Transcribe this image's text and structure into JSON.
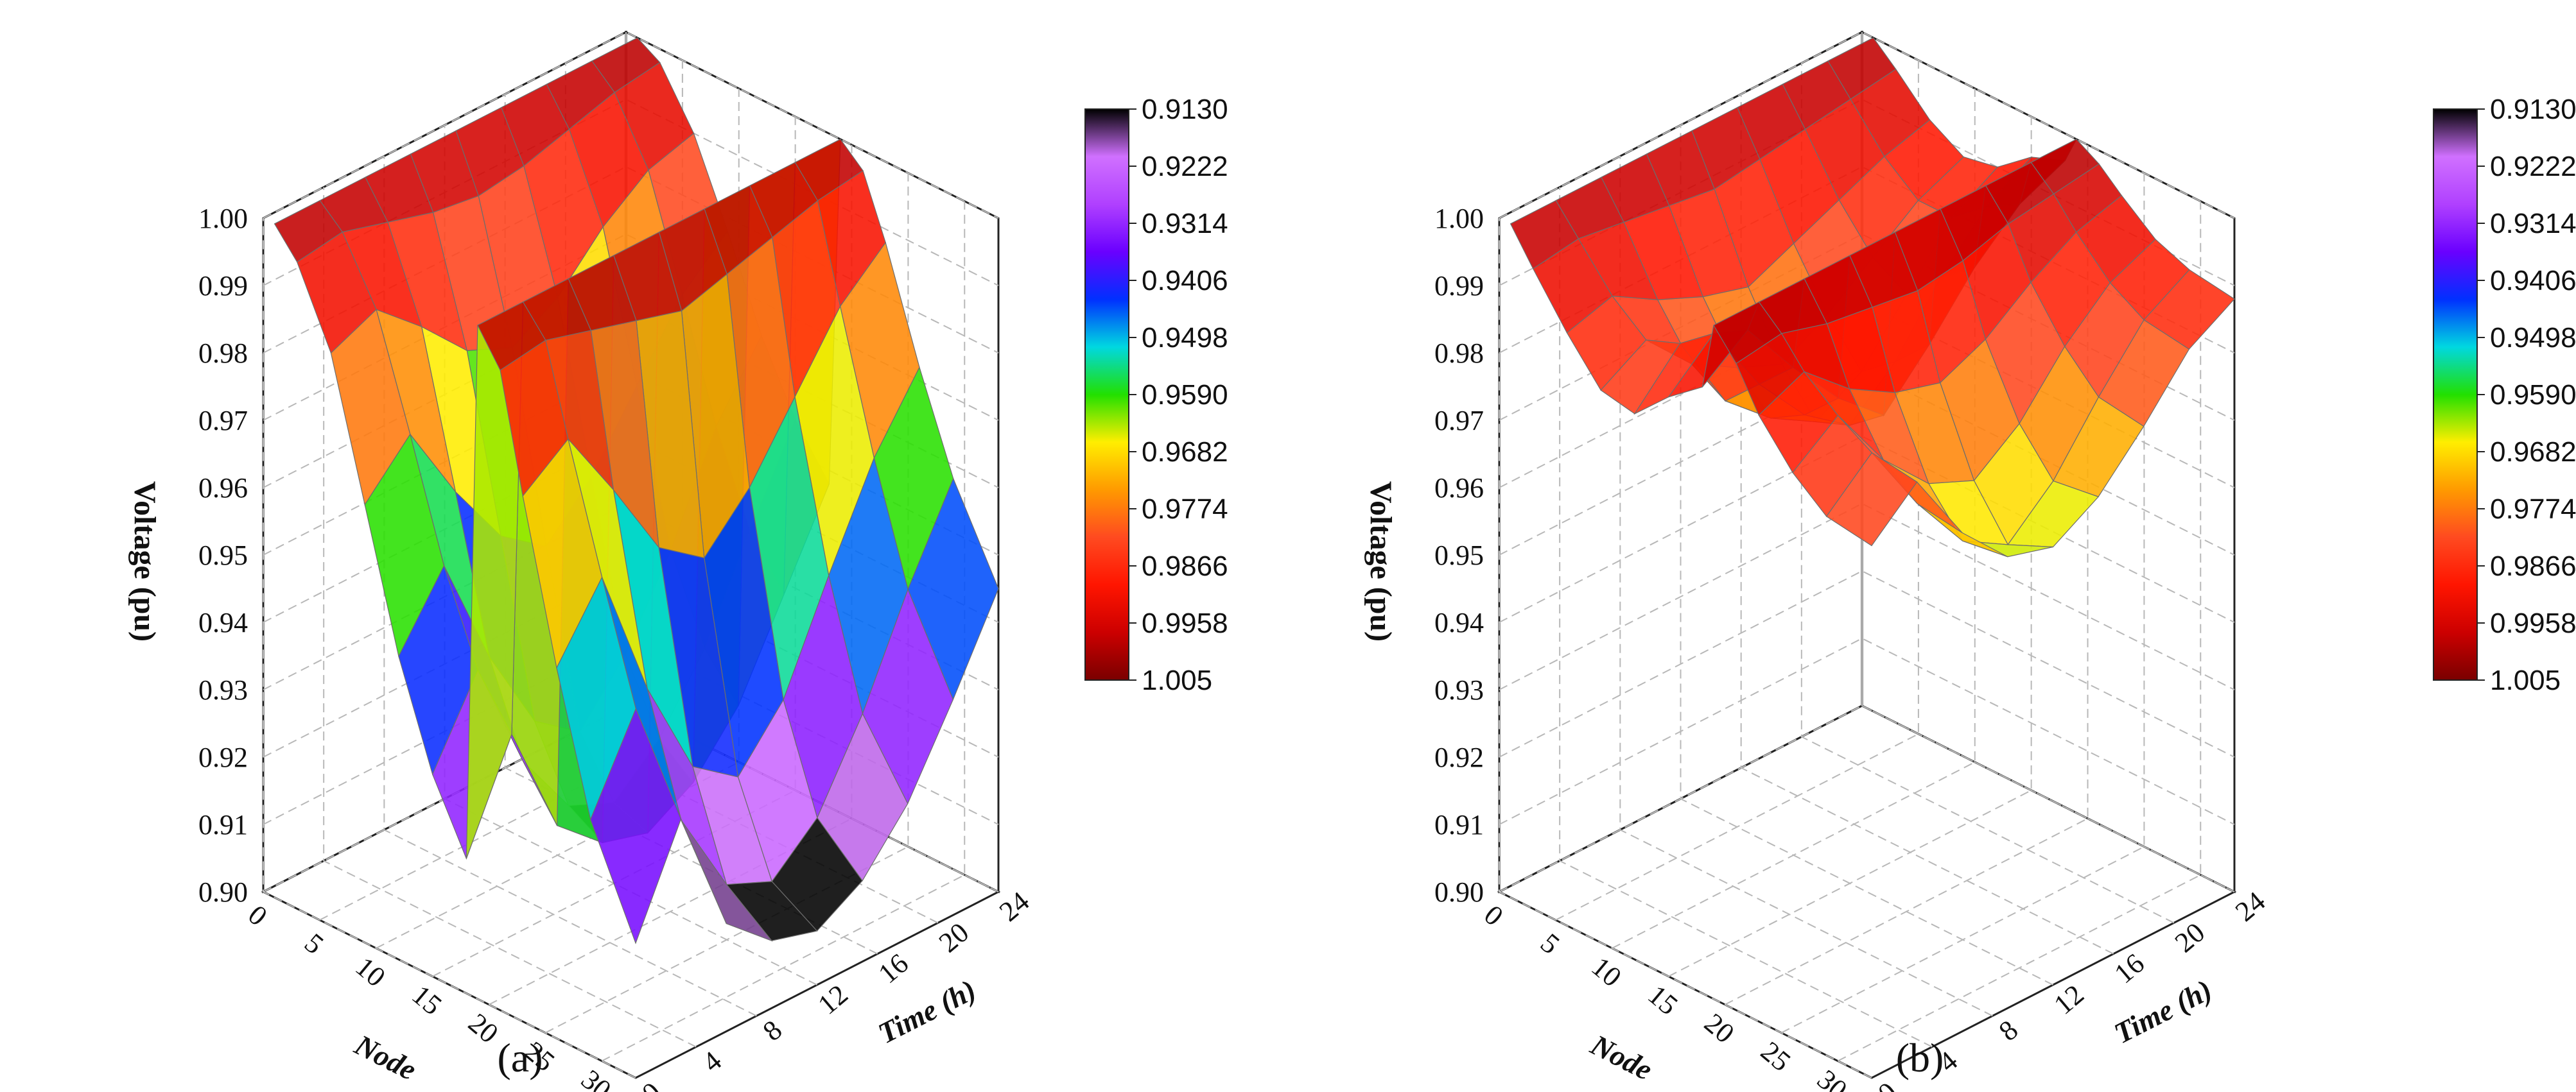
{
  "chart_data": [
    {
      "panel": "a",
      "type": "surface3d",
      "caption": "(a)",
      "zlabel": "Voltage (pu)",
      "xlabel": "Node",
      "ylabel": "Time (h)",
      "zlim": [
        0.9,
        1.0
      ],
      "xlim": [
        0,
        33
      ],
      "ylim": [
        0,
        24
      ],
      "z_ticks": [
        "0.90",
        "0.91",
        "0.92",
        "0.93",
        "0.94",
        "0.95",
        "0.96",
        "0.97",
        "0.98",
        "0.99",
        "1.00"
      ],
      "x_ticks": [
        "0",
        "5",
        "10",
        "15",
        "20",
        "25",
        "30"
      ],
      "y_ticks": [
        "0",
        "4",
        "8",
        "12",
        "16",
        "20",
        "24"
      ],
      "colorbar_ticks": [
        "0.9130",
        "0.9222",
        "0.9314",
        "0.9406",
        "0.9498",
        "0.9590",
        "0.9682",
        "0.9774",
        "0.9866",
        "0.9958",
        "1.005"
      ],
      "nodes": [
        1,
        3,
        6,
        9,
        12,
        15,
        18,
        19,
        21,
        23,
        26,
        29,
        33
      ],
      "hours": [
        0,
        3,
        6,
        9,
        12,
        15,
        18,
        21,
        24
      ],
      "voltage": [
        [
          1.0,
          1.0,
          1.0,
          1.0,
          1.0,
          1.0,
          1.0,
          1.0,
          1.0
        ],
        [
          0.996,
          0.997,
          0.995,
          0.993,
          0.992,
          0.993,
          0.995,
          0.997,
          0.998
        ],
        [
          0.985,
          0.988,
          0.982,
          0.975,
          0.972,
          0.976,
          0.983,
          0.988,
          0.99
        ],
        [
          0.965,
          0.972,
          0.96,
          0.95,
          0.945,
          0.952,
          0.962,
          0.972,
          0.978
        ],
        [
          0.945,
          0.955,
          0.938,
          0.925,
          0.92,
          0.928,
          0.94,
          0.955,
          0.965
        ],
        [
          0.93,
          0.942,
          0.925,
          0.915,
          0.912,
          0.918,
          0.928,
          0.942,
          0.955
        ],
        [
          0.92,
          0.935,
          0.918,
          0.912,
          0.91,
          0.914,
          0.922,
          0.935,
          0.948
        ],
        [
          1.0,
          1.0,
          1.0,
          1.0,
          1.0,
          1.0,
          1.0,
          1.0,
          1.0
        ],
        [
          0.995,
          0.996,
          0.994,
          0.992,
          0.99,
          0.992,
          0.994,
          0.996,
          0.997
        ],
        [
          0.978,
          0.983,
          0.972,
          0.96,
          0.955,
          0.962,
          0.972,
          0.982,
          0.988
        ],
        [
          0.955,
          0.965,
          0.945,
          0.93,
          0.925,
          0.933,
          0.948,
          0.962,
          0.972
        ],
        [
          0.935,
          0.948,
          0.928,
          0.915,
          0.912,
          0.918,
          0.93,
          0.945,
          0.958
        ],
        [
          0.92,
          0.935,
          0.916,
          0.91,
          0.908,
          0.912,
          0.92,
          0.932,
          0.945
        ]
      ]
    },
    {
      "panel": "b",
      "type": "surface3d",
      "caption": "(b)",
      "zlabel": "Voltage (pu)",
      "xlabel": "Node",
      "ylabel": "Time (h)",
      "zlim": [
        0.9,
        1.0
      ],
      "xlim": [
        0,
        33
      ],
      "ylim": [
        0,
        24
      ],
      "z_ticks": [
        "0.90",
        "0.91",
        "0.92",
        "0.93",
        "0.94",
        "0.95",
        "0.96",
        "0.97",
        "0.98",
        "0.99",
        "1.00"
      ],
      "x_ticks": [
        "0",
        "5",
        "10",
        "15",
        "20",
        "25",
        "30"
      ],
      "y_ticks": [
        "0",
        "4",
        "8",
        "12",
        "16",
        "20",
        "24"
      ],
      "colorbar_ticks": [
        "0.9130",
        "0.9222",
        "0.9314",
        "0.9406",
        "0.9498",
        "0.9590",
        "0.9682",
        "0.9774",
        "0.9866",
        "0.9958",
        "1.005"
      ],
      "nodes": [
        1,
        3,
        6,
        9,
        12,
        15,
        18,
        19,
        21,
        23,
        26,
        29,
        33
      ],
      "hours": [
        0,
        3,
        6,
        9,
        12,
        15,
        18,
        21,
        24
      ],
      "voltage": [
        [
          1.0,
          1.0,
          1.0,
          1.0,
          1.0,
          1.0,
          1.0,
          1.0,
          1.0
        ],
        [
          0.995,
          0.996,
          0.995,
          0.994,
          0.993,
          0.994,
          0.995,
          0.996,
          0.997
        ],
        [
          0.988,
          0.99,
          0.986,
          0.983,
          0.981,
          0.984,
          0.987,
          0.99,
          0.992
        ],
        [
          0.982,
          0.986,
          0.979,
          0.975,
          0.972,
          0.976,
          0.981,
          0.986,
          0.989
        ],
        [
          0.981,
          0.988,
          0.976,
          0.97,
          0.966,
          0.97,
          0.978,
          0.986,
          0.99
        ],
        [
          0.986,
          0.992,
          0.981,
          0.973,
          0.968,
          0.974,
          0.983,
          0.99,
          0.994
        ],
        [
          0.99,
          0.995,
          0.986,
          0.978,
          0.972,
          0.979,
          0.987,
          0.993,
          0.996
        ],
        [
          1.0,
          1.0,
          1.0,
          1.0,
          1.0,
          1.0,
          1.0,
          1.0,
          1.0
        ],
        [
          0.996,
          0.997,
          0.995,
          0.994,
          0.993,
          0.994,
          0.996,
          0.997,
          0.998
        ],
        [
          0.99,
          0.993,
          0.987,
          0.983,
          0.981,
          0.984,
          0.989,
          0.993,
          0.995
        ],
        [
          0.984,
          0.989,
          0.979,
          0.972,
          0.969,
          0.974,
          0.982,
          0.988,
          0.991
        ],
        [
          0.98,
          0.986,
          0.975,
          0.966,
          0.962,
          0.968,
          0.977,
          0.985,
          0.989
        ],
        [
          0.979,
          0.985,
          0.974,
          0.967,
          0.965,
          0.969,
          0.976,
          0.984,
          0.988
        ]
      ]
    }
  ],
  "colormap_stops": [
    "#7a0000",
    "#cc0000",
    "#ff1500",
    "#ff4a20",
    "#ff9a00",
    "#ffee00",
    "#22e000",
    "#00d8e0",
    "#0030ff",
    "#6a00ff",
    "#b040ff",
    "#d070ff",
    "#000000"
  ]
}
